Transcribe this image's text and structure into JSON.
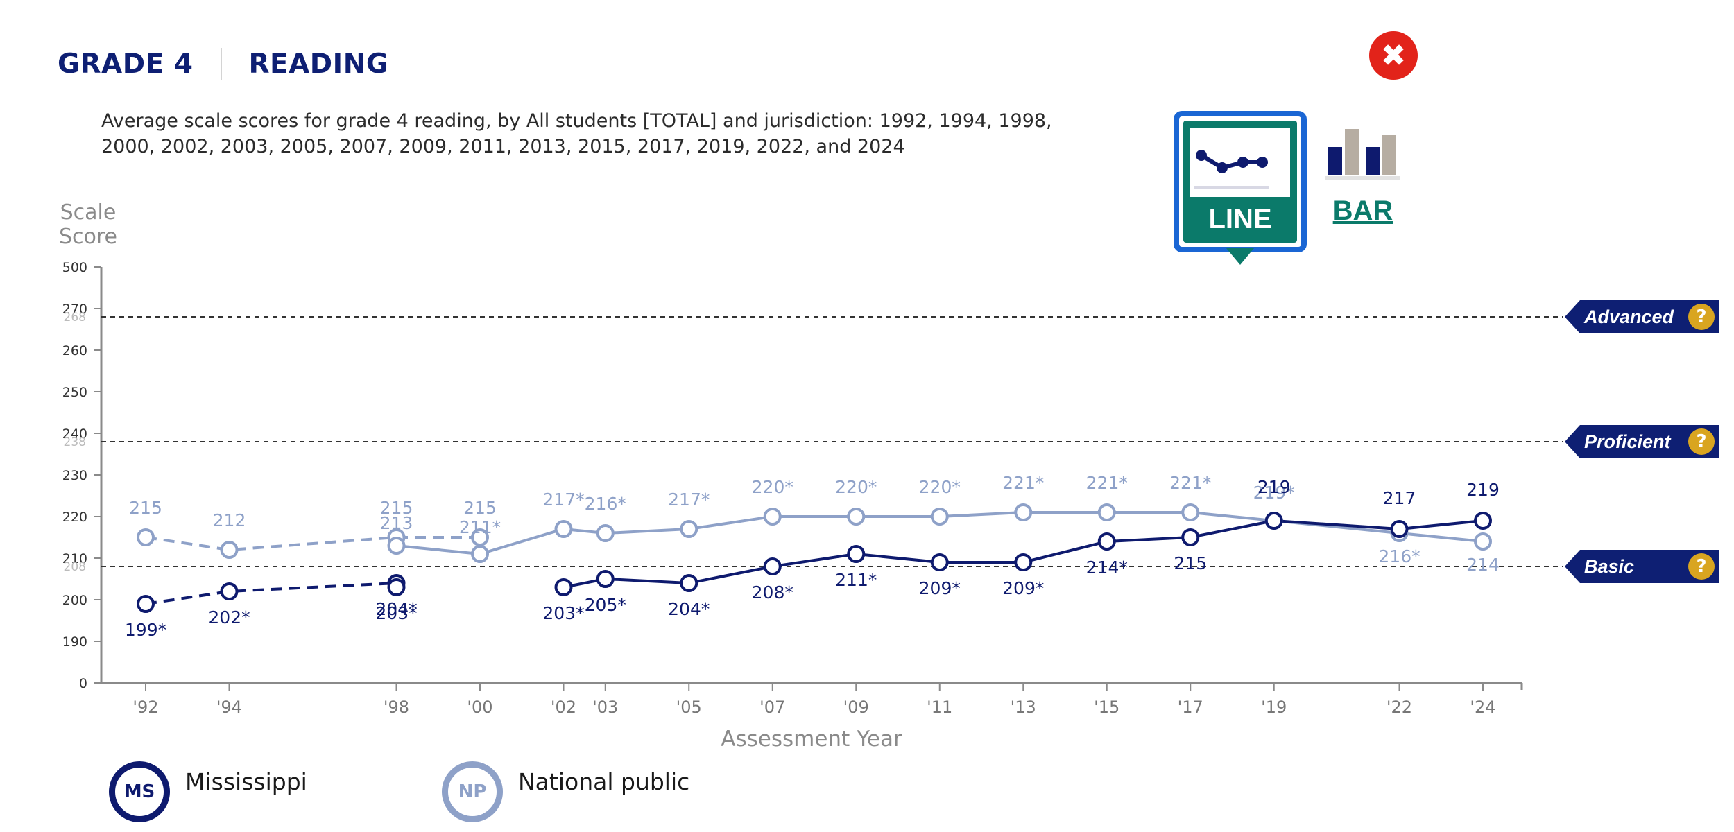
{
  "header": {
    "grade": "GRADE 4",
    "subject": "READING"
  },
  "close_label": "✖",
  "description": "Average scale scores for grade 4 reading, by All students [TOTAL] and jurisdiction: 1992, 1994, 1998, 2000, 2002, 2003, 2005, 2007, 2009, 2011, 2013, 2015, 2017, 2019, 2022, and 2024",
  "toggle": {
    "line_label": "LINE",
    "bar_label": "BAR",
    "selected": "line"
  },
  "colors": {
    "mississippi": "#0e1a6e",
    "national": "#8ea1c8",
    "accent": "#0b7a6a",
    "achievement_badge": "#0e1f73",
    "help_badge": "#d9a520"
  },
  "achievement_levels": [
    {
      "label": "Advanced",
      "help": "?",
      "score": 268
    },
    {
      "label": "Proficient",
      "help": "?",
      "score": 238
    },
    {
      "label": "Basic",
      "help": "?",
      "score": 208
    }
  ],
  "legend": [
    {
      "abbr": "MS",
      "label": "Mississippi"
    },
    {
      "abbr": "NP",
      "label": "National public"
    }
  ],
  "chart_data": {
    "type": "line",
    "ylabel": "Scale Score",
    "ylabel_lines": [
      "Scale",
      "Score"
    ],
    "xlabel": "Assessment Year",
    "y_ticks": [
      "500",
      "270",
      "260",
      "250",
      "240",
      "230",
      "220",
      "210",
      "200",
      "190",
      "0"
    ],
    "ghost_labels": [
      "268",
      "238",
      "208"
    ],
    "y_range_shown": [
      190,
      270
    ],
    "y_axis_break": true,
    "x_years": [
      1992,
      1994,
      1998,
      2000,
      2002,
      2003,
      2005,
      2007,
      2009,
      2011,
      2013,
      2015,
      2017,
      2019,
      2022,
      2024
    ],
    "x_tick_labels": [
      "'92",
      "'94",
      "'98",
      "'00",
      "'02",
      "'03",
      "'05",
      "'07",
      "'09",
      "'11",
      "'13",
      "'15",
      "'17",
      "'19",
      "'22",
      "'24"
    ],
    "grid": false,
    "series": [
      {
        "name": "Mississippi",
        "segments": [
          {
            "style": "dashed",
            "points": [
              {
                "x": 1992,
                "y": 199,
                "label": "199*"
              },
              {
                "x": 1994,
                "y": 202,
                "label": "202*"
              },
              {
                "x": 1998,
                "y": 204,
                "label": "204*"
              }
            ]
          },
          {
            "style": "dashed",
            "points": [
              {
                "x": 1998,
                "y": 203,
                "label": "203*"
              }
            ]
          },
          {
            "style": "solid",
            "points": [
              {
                "x": 2002,
                "y": 203,
                "label": "203*"
              },
              {
                "x": 2003,
                "y": 205,
                "label": "205*"
              },
              {
                "x": 2005,
                "y": 204,
                "label": "204*"
              },
              {
                "x": 2007,
                "y": 208,
                "label": "208*"
              },
              {
                "x": 2009,
                "y": 211,
                "label": "211*"
              },
              {
                "x": 2011,
                "y": 209,
                "label": "209*"
              },
              {
                "x": 2013,
                "y": 209,
                "label": "209*"
              },
              {
                "x": 2015,
                "y": 214,
                "label": "214*"
              },
              {
                "x": 2017,
                "y": 215,
                "label": "215"
              },
              {
                "x": 2019,
                "y": 219,
                "label": "219"
              },
              {
                "x": 2022,
                "y": 217,
                "label": "217"
              },
              {
                "x": 2024,
                "y": 219,
                "label": "219"
              }
            ]
          }
        ]
      },
      {
        "name": "National public",
        "segments": [
          {
            "style": "dashed",
            "points": [
              {
                "x": 1992,
                "y": 215,
                "label": "215"
              },
              {
                "x": 1994,
                "y": 212,
                "label": "212"
              },
              {
                "x": 1998,
                "y": 215,
                "label": "215"
              },
              {
                "x": 2000,
                "y": 215,
                "label": "215"
              }
            ]
          },
          {
            "style": "solid",
            "points": [
              {
                "x": 1998,
                "y": 213,
                "label": "213"
              },
              {
                "x": 2000,
                "y": 211,
                "label": "211*"
              },
              {
                "x": 2002,
                "y": 217,
                "label": "217*"
              },
              {
                "x": 2003,
                "y": 216,
                "label": "216*"
              },
              {
                "x": 2005,
                "y": 217,
                "label": "217*"
              },
              {
                "x": 2007,
                "y": 220,
                "label": "220*"
              },
              {
                "x": 2009,
                "y": 220,
                "label": "220*"
              },
              {
                "x": 2011,
                "y": 220,
                "label": "220*"
              },
              {
                "x": 2013,
                "y": 221,
                "label": "221*"
              },
              {
                "x": 2015,
                "y": 221,
                "label": "221*"
              },
              {
                "x": 2017,
                "y": 221,
                "label": "221*"
              },
              {
                "x": 2019,
                "y": 219,
                "label": "219*"
              },
              {
                "x": 2022,
                "y": 216,
                "label": "216*"
              },
              {
                "x": 2024,
                "y": 214,
                "label": "214"
              }
            ]
          }
        ]
      }
    ]
  }
}
